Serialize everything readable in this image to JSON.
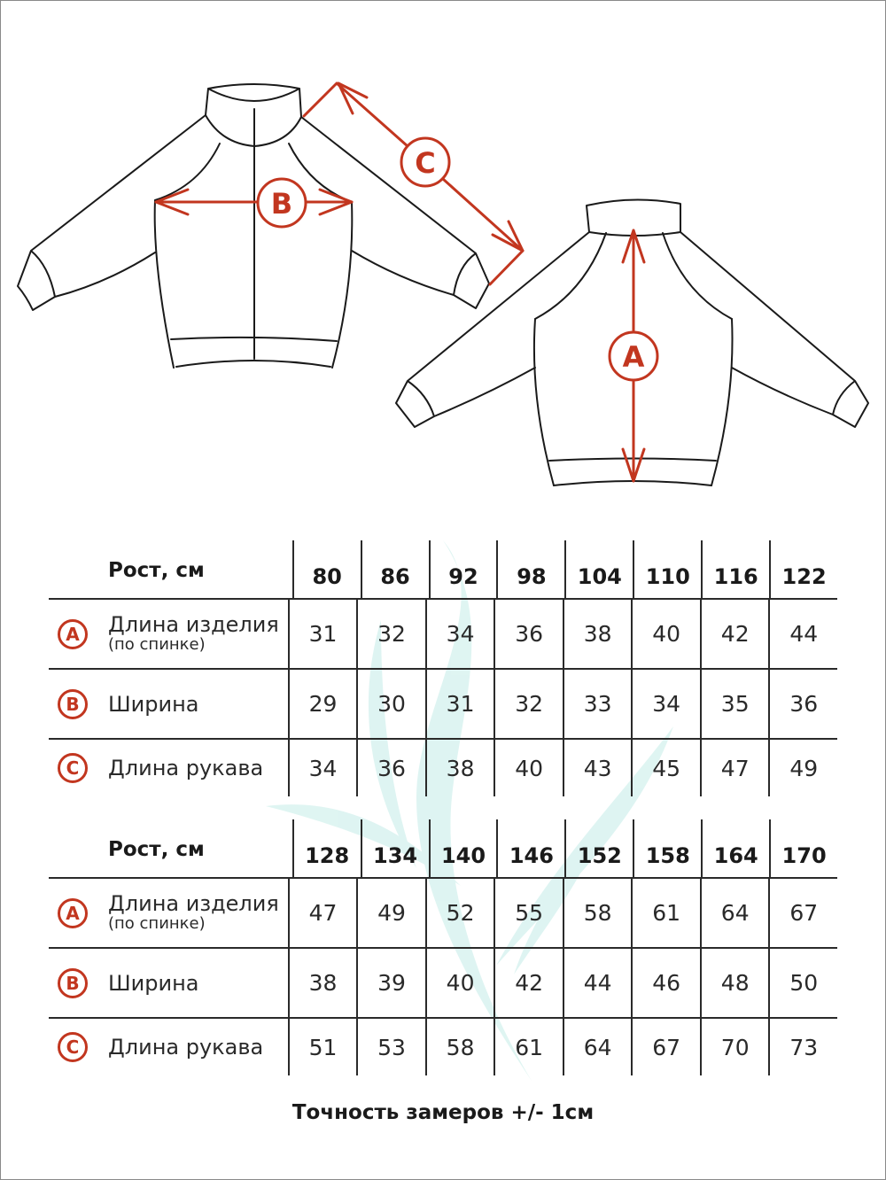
{
  "diagram": {
    "labels": {
      "a": "A",
      "b": "B",
      "c": "C"
    },
    "accent_color": "#c2361f",
    "line_color": "#1a1a1a"
  },
  "tables": [
    {
      "header_label": "Рост, см",
      "sizes": [
        "80",
        "86",
        "92",
        "98",
        "104",
        "110",
        "116",
        "122"
      ],
      "rows": [
        {
          "badge": "A",
          "label": "Длина изделия",
          "sublabel": "(по спинке)",
          "values": [
            "31",
            "32",
            "34",
            "36",
            "38",
            "40",
            "42",
            "44"
          ]
        },
        {
          "badge": "B",
          "label": "Ширина",
          "values": [
            "29",
            "30",
            "31",
            "32",
            "33",
            "34",
            "35",
            "36"
          ]
        },
        {
          "badge": "C",
          "label": "Длина рукава",
          "values": [
            "34",
            "36",
            "38",
            "40",
            "43",
            "45",
            "47",
            "49"
          ]
        }
      ]
    },
    {
      "header_label": "Рост, см",
      "sizes": [
        "128",
        "134",
        "140",
        "146",
        "152",
        "158",
        "164",
        "170"
      ],
      "rows": [
        {
          "badge": "A",
          "label": "Длина изделия",
          "sublabel": "(по спинке)",
          "values": [
            "47",
            "49",
            "52",
            "55",
            "58",
            "61",
            "64",
            "67"
          ]
        },
        {
          "badge": "B",
          "label": "Ширина",
          "values": [
            "38",
            "39",
            "40",
            "42",
            "44",
            "46",
            "48",
            "50"
          ]
        },
        {
          "badge": "C",
          "label": "Длина рукава",
          "values": [
            "51",
            "53",
            "58",
            "61",
            "64",
            "67",
            "70",
            "73"
          ]
        }
      ]
    }
  ],
  "footer": "Точность замеров +/- 1см"
}
